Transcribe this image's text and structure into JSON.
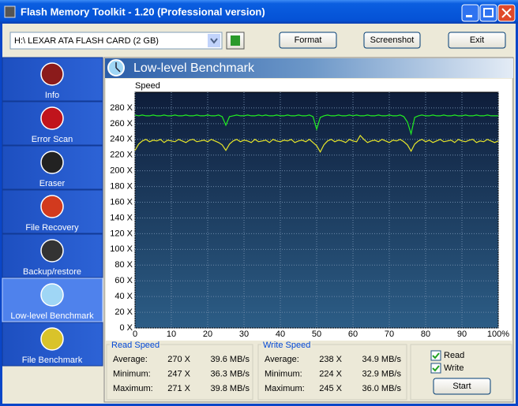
{
  "window": {
    "title": "Flash Memory Toolkit - 1.20 (Professional version)"
  },
  "toolbar": {
    "drive": "H:\\ LEXAR ATA FLASH CARD (2 GB)",
    "buttons": [
      "Format",
      "Screenshot",
      "Exit"
    ]
  },
  "sidebar": {
    "items": [
      "Info",
      "Error Scan",
      "Eraser",
      "File Recovery",
      "Backup/restore",
      "Low-level Benchmark",
      "File Benchmark"
    ],
    "selected": 5
  },
  "panel": {
    "title": "Low-level Benchmark"
  },
  "chart_data": {
    "type": "line",
    "y_label": "Speed",
    "x": [
      0,
      1,
      2,
      3,
      4,
      5,
      6,
      7,
      8,
      9,
      10,
      11,
      12,
      13,
      14,
      15,
      16,
      17,
      18,
      19,
      20,
      21,
      22,
      23,
      24,
      25,
      26,
      27,
      28,
      29,
      30,
      31,
      32,
      33,
      34,
      35,
      36,
      37,
      38,
      39,
      40,
      41,
      42,
      43,
      44,
      45,
      46,
      47,
      48,
      49,
      50,
      51,
      52,
      53,
      54,
      55,
      56,
      57,
      58,
      59,
      60,
      61,
      62,
      63,
      64,
      65,
      66,
      67,
      68,
      69,
      70,
      71,
      72,
      73,
      74,
      75,
      76,
      77,
      78,
      79,
      80,
      81,
      82,
      83,
      84,
      85,
      86,
      87,
      88,
      89,
      90,
      91,
      92,
      93,
      94,
      95,
      96,
      97,
      98,
      99,
      100
    ],
    "series": [
      {
        "name": "Read",
        "color": "#22ee22",
        "values": [
          271,
          270,
          271,
          270,
          270,
          271,
          270,
          270,
          271,
          270,
          270,
          271,
          270,
          270,
          271,
          270,
          270,
          271,
          270,
          270,
          271,
          270,
          270,
          271,
          269,
          258,
          269,
          270,
          271,
          270,
          270,
          271,
          270,
          270,
          271,
          270,
          271,
          270,
          270,
          271,
          270,
          270,
          271,
          270,
          270,
          271,
          270,
          270,
          271,
          269,
          253,
          268,
          270,
          271,
          270,
          270,
          271,
          270,
          270,
          271,
          270,
          271,
          270,
          270,
          271,
          270,
          270,
          271,
          270,
          270,
          271,
          270,
          270,
          271,
          269,
          262,
          247,
          268,
          270,
          271,
          270,
          270,
          271,
          270,
          270,
          271,
          270,
          270,
          271,
          270,
          270,
          271,
          270,
          270,
          271,
          270,
          270,
          271,
          270,
          270,
          270
        ]
      },
      {
        "name": "Write",
        "color": "#e6e62a",
        "values": [
          226,
          234,
          238,
          240,
          237,
          239,
          238,
          240,
          236,
          239,
          238,
          237,
          240,
          238,
          236,
          239,
          240,
          237,
          238,
          239,
          237,
          240,
          238,
          236,
          233,
          226,
          234,
          238,
          240,
          237,
          239,
          238,
          236,
          240,
          237,
          238,
          239,
          236,
          240,
          238,
          237,
          239,
          238,
          240,
          236,
          238,
          239,
          237,
          240,
          236,
          232,
          224,
          233,
          238,
          240,
          237,
          239,
          238,
          236,
          240,
          238,
          237,
          245,
          240,
          236,
          238,
          239,
          237,
          240,
          238,
          236,
          239,
          238,
          240,
          237,
          233,
          225,
          234,
          238,
          240,
          237,
          239,
          236,
          238,
          240,
          237,
          238,
          239,
          236,
          240,
          238,
          237,
          239,
          240,
          236,
          238,
          237,
          240,
          238,
          236,
          238
        ]
      }
    ],
    "xlim": [
      0,
      100
    ],
    "ylim": [
      0,
      300
    ],
    "xticks": [
      0,
      10,
      20,
      30,
      40,
      50,
      60,
      70,
      80,
      90,
      {
        "value": 100,
        "label": "100%"
      }
    ],
    "yticks": [
      {
        "value": 0,
        "label": "0 X"
      },
      {
        "value": 20,
        "label": "20 X"
      },
      {
        "value": 40,
        "label": "40 X"
      },
      {
        "value": 60,
        "label": "60 X"
      },
      {
        "value": 80,
        "label": "80 X"
      },
      {
        "value": 100,
        "label": "100 X"
      },
      {
        "value": 120,
        "label": "120 X"
      },
      {
        "value": 140,
        "label": "140 X"
      },
      {
        "value": 160,
        "label": "160 X"
      },
      {
        "value": 180,
        "label": "180 X"
      },
      {
        "value": 200,
        "label": "200 X"
      },
      {
        "value": 220,
        "label": "220 X"
      },
      {
        "value": 240,
        "label": "240 X"
      },
      {
        "value": 260,
        "label": "260 X"
      },
      {
        "value": 280,
        "label": "280 X"
      }
    ],
    "grid": true
  },
  "stats": [
    {
      "title": "Read Speed",
      "rows": [
        [
          "Average:",
          "270 X",
          "39.6 MB/s"
        ],
        [
          "Minimum:",
          "247 X",
          "36.3 MB/s"
        ],
        [
          "Maximum:",
          "271 X",
          "39.8 MB/s"
        ]
      ]
    },
    {
      "title": "Write Speed",
      "rows": [
        [
          "Average:",
          "238 X",
          "34.9 MB/s"
        ],
        [
          "Minimum:",
          "224 X",
          "32.9 MB/s"
        ],
        [
          "Maximum:",
          "245 X",
          "36.0 MB/s"
        ]
      ]
    }
  ],
  "controls": {
    "start": "Start"
  }
}
